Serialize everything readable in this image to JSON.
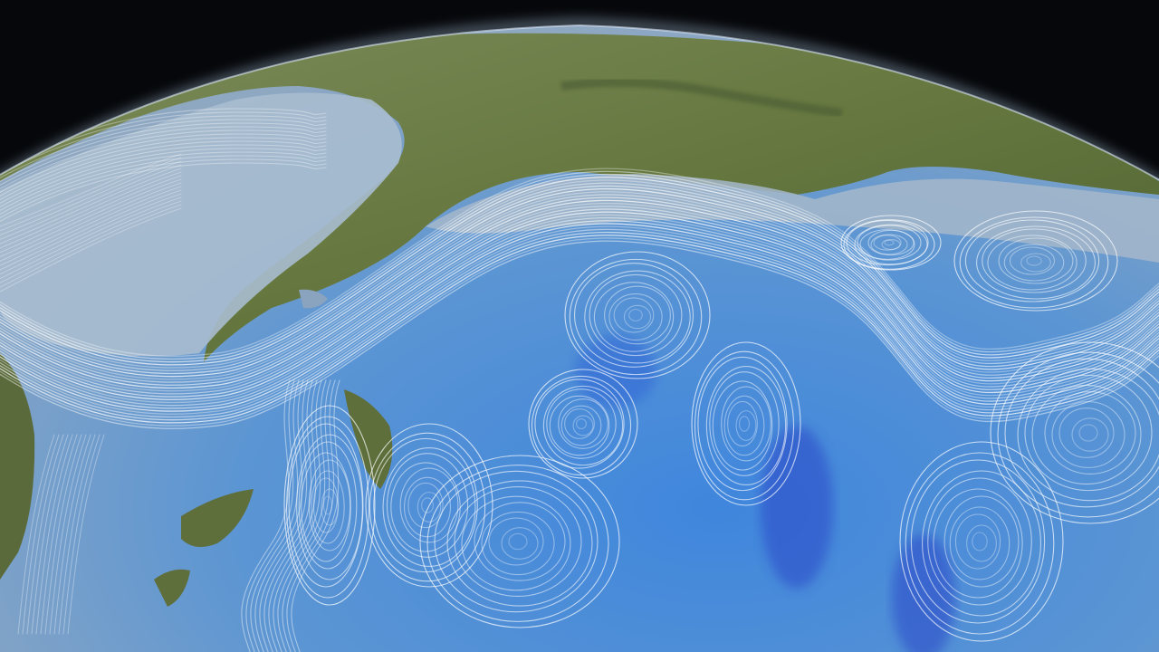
{
  "scene": {
    "subject": "globe-ocean-currents",
    "colors": {
      "space": "#05070a",
      "atmosphere_glow": "#bcd6f0",
      "land": "#6f7f4e",
      "land_dark": "#4f5f35",
      "shallow_sea": "#9db2c8",
      "deep_ocean": "#3f86dd",
      "deep_ocean_dark": "#2a47c8",
      "current_streamlines": "#ffffff"
    }
  }
}
